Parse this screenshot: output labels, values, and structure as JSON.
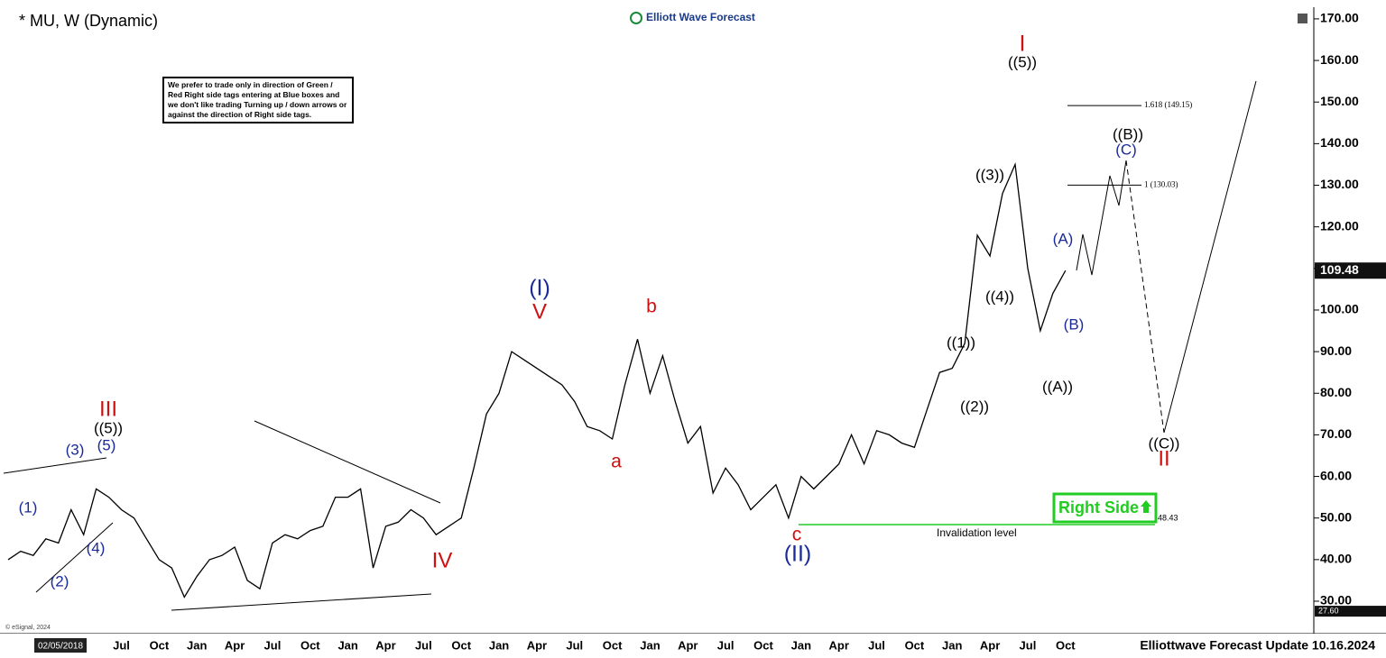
{
  "chart_data": {
    "type": "line",
    "title": "* MU, W (Dynamic)",
    "brand": "Elliott Wave Forecast",
    "note": "We prefer to trade only in direction of Green / Red Right side tags entering at Blue boxes and we don't like trading Turning up / down arrows or against the direction of Right side tags.",
    "footer": "Elliottwave Forecast Update 10.16.2024",
    "copyright": "© eSignal, 2024",
    "cursor_date": "02/05/2018",
    "categories": [
      null,
      null,
      null,
      null,
      null,
      null,
      null,
      null,
      null,
      "Jul",
      null,
      null,
      "Oct",
      null,
      null,
      "Jan",
      null,
      null,
      "Apr",
      null,
      null,
      "Jul",
      null,
      null,
      "Oct",
      null,
      null,
      "Jan",
      null,
      null,
      "Apr",
      null,
      null,
      "Jul",
      null,
      null,
      "Oct",
      null,
      null,
      "Jan",
      null,
      null,
      "Apr",
      null,
      null,
      "Jul",
      null,
      null,
      "Oct",
      null,
      null,
      "Jan",
      null,
      null,
      "Apr",
      null,
      null,
      "Jul",
      null,
      null,
      "Oct",
      null,
      null,
      "Jan",
      null,
      null,
      "Apr",
      null,
      null,
      "Jul",
      null,
      null,
      "Oct",
      null,
      null,
      "Jan",
      null,
      null,
      "Apr",
      null,
      null,
      "Jul",
      null,
      null,
      "Oct"
    ],
    "series": [
      {
        "name": "MU",
        "color": "#000000",
        "values": [
          40,
          42,
          41,
          45,
          44,
          52,
          46,
          57,
          55,
          52,
          50,
          45,
          40,
          38,
          31,
          36,
          40,
          41,
          43,
          35,
          33,
          44,
          46,
          45,
          47,
          48,
          55,
          55,
          57,
          38,
          48,
          49,
          52,
          50,
          46,
          48,
          50,
          62,
          75,
          80,
          90,
          88,
          86,
          84,
          82,
          78,
          72,
          71,
          69,
          82,
          93,
          80,
          89,
          78,
          68,
          72,
          56,
          62,
          58,
          52,
          55,
          58,
          50,
          60,
          57,
          60,
          63,
          70,
          63,
          71,
          70,
          68,
          67,
          76,
          85,
          86,
          92,
          118,
          113,
          128,
          135,
          110,
          95,
          104,
          109.48
        ]
      }
    ],
    "last_price": {
      "value": 109.48,
      "label": "109.48"
    },
    "low_marker": {
      "value": 27.6,
      "label": "27.60"
    },
    "ylim": [
      22.2,
      172.8
    ],
    "yticks": [
      {
        "value": 30,
        "label": "30.00"
      },
      {
        "value": 40,
        "label": "40.00"
      },
      {
        "value": 50,
        "label": "50.00"
      },
      {
        "value": 60,
        "label": "60.00"
      },
      {
        "value": 70,
        "label": "70.00"
      },
      {
        "value": 80,
        "label": "80.00"
      },
      {
        "value": 90,
        "label": "90.00"
      },
      {
        "value": 100,
        "label": "100.00"
      },
      {
        "value": 110,
        "label": "110.00"
      },
      {
        "value": 120,
        "label": "120.00"
      },
      {
        "value": 130,
        "label": "130.00"
      },
      {
        "value": 140,
        "label": "140.00"
      },
      {
        "value": 150,
        "label": "150.00"
      },
      {
        "value": 160,
        "label": "160.00"
      },
      {
        "value": 170,
        "label": "170.00"
      }
    ],
    "levels": [
      {
        "value": 149.15,
        "label": "1.618 (149.15)"
      },
      {
        "value": 130.03,
        "label": "1 (130.03)"
      }
    ],
    "invalidation": {
      "value": 48.43,
      "label": "48.43",
      "text": "Invalidation level"
    },
    "right_side": "Right Side",
    "annotations": [
      {
        "text": "III",
        "color": "#d01010"
      },
      {
        "text": "((5))",
        "color": "#000000"
      },
      {
        "text": "(5)",
        "color": "#1a2a9a"
      },
      {
        "text": "(3)",
        "color": "#1a2a9a"
      },
      {
        "text": "(1)",
        "color": "#1a2a9a"
      },
      {
        "text": "(4)",
        "color": "#1a2a9a"
      },
      {
        "text": "(2)",
        "color": "#1a2a9a"
      },
      {
        "text": "IV",
        "color": "#d01010"
      },
      {
        "text": "(I)",
        "color": "#1a2a9a"
      },
      {
        "text": "V",
        "color": "#d01010"
      },
      {
        "text": "a",
        "color": "#d01010"
      },
      {
        "text": "b",
        "color": "#d01010"
      },
      {
        "text": "c",
        "color": "#d01010"
      },
      {
        "text": "(II)",
        "color": "#1a2a9a"
      },
      {
        "text": "((1))",
        "color": "#000000"
      },
      {
        "text": "((2))",
        "color": "#000000"
      },
      {
        "text": "((3))",
        "color": "#000000"
      },
      {
        "text": "((4))",
        "color": "#000000"
      },
      {
        "text": "I",
        "color": "#d01010"
      },
      {
        "text": "((5))",
        "color": "#000000"
      },
      {
        "text": "((A))",
        "color": "#000000"
      },
      {
        "text": "(A)",
        "color": "#1a2a9a"
      },
      {
        "text": "(B)",
        "color": "#1a2a9a"
      },
      {
        "text": "((B))",
        "color": "#000000"
      },
      {
        "text": "(C)",
        "color": "#1a2a9a"
      },
      {
        "text": "((C))",
        "color": "#000000"
      },
      {
        "text": "II",
        "color": "#d01010"
      }
    ]
  }
}
